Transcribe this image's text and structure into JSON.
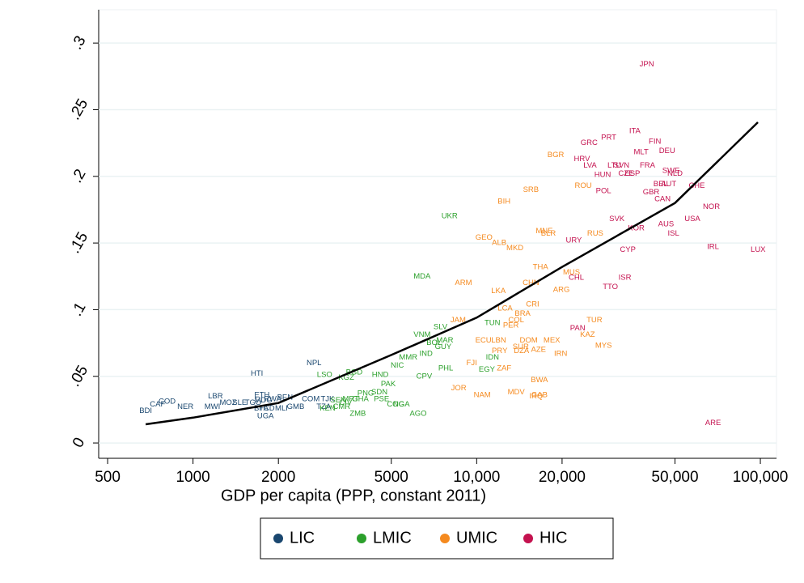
{
  "chart_data": {
    "type": "scatter",
    "x_label": "GDP per capita (PPP, constant 2011)",
    "xscale": "log",
    "xlim": [
      465,
      114000
    ],
    "ylim": [
      -0.0115,
      0.325
    ],
    "xticks": [
      500,
      1000,
      2000,
      5000,
      {
        "value": 10000,
        "label": "10,000"
      },
      {
        "value": 20000,
        "label": "20,000"
      },
      {
        "value": 50000,
        "label": "50,000"
      },
      {
        "value": 100000,
        "label": "100,000"
      }
    ],
    "yticks": [
      0,
      {
        "value": 0.05,
        "label": ".05"
      },
      {
        "value": 0.1,
        "label": ".1"
      },
      {
        "value": 0.15,
        "label": ".15"
      },
      {
        "value": 0.2,
        "label": ".2"
      },
      {
        "value": 0.25,
        "label": ".25"
      },
      {
        "value": 0.3,
        "label": ".3"
      }
    ],
    "grid": true,
    "legend": "bottom",
    "series": [
      {
        "name": "LIC",
        "color": "#1a476f",
        "labels": [
          "BDI",
          "CAF",
          "COD",
          "NER",
          "LBR",
          "MWI",
          "MOZ",
          "SLE",
          "TGO",
          "MDG",
          "RWA",
          "ETH",
          "BEN",
          "BFA",
          "TCD",
          "MLI",
          "GMB",
          "UGA",
          "HTI",
          "NPL",
          "TZA",
          "COM",
          "TJK"
        ],
        "x": [
          681,
          750,
          810,
          940,
          1200,
          1170,
          1330,
          1460,
          1630,
          1770,
          1910,
          1750,
          2110,
          1740,
          1820,
          2050,
          2300,
          1800,
          1680,
          2670,
          2890,
          2600,
          2980
        ],
        "values": [
          0.024,
          0.029,
          0.031,
          0.027,
          0.035,
          0.027,
          0.03,
          0.03,
          0.03,
          0.032,
          0.033,
          0.036,
          0.034,
          0.026,
          0.026,
          0.026,
          0.027,
          0.02,
          0.052,
          0.06,
          0.027,
          0.033,
          0.033
        ]
      },
      {
        "name": "LMIC",
        "color": "#2ca02c",
        "labels": [
          "UKR",
          "MDA",
          "SLV",
          "VNM",
          "BOL",
          "MAR",
          "IND",
          "MMR",
          "NIC",
          "HND",
          "PAK",
          "SDN",
          "PNG",
          "BGD",
          "KGZ",
          "LSO",
          "SEN",
          "MRT",
          "GHA",
          "PSE",
          "CMR",
          "KEN",
          "CIV",
          "ZMB",
          "COG",
          "NGA",
          "AGO",
          "CPV",
          "PHL",
          "IDN",
          "EGY",
          "TUN",
          "GUY"
        ],
        "x": [
          8020,
          6420,
          7450,
          6420,
          7080,
          7720,
          6630,
          5740,
          5250,
          4570,
          4880,
          4540,
          4060,
          3700,
          3470,
          2910,
          3250,
          3600,
          3890,
          4620,
          3340,
          2980,
          3450,
          3810,
          5180,
          5430,
          6220,
          6530,
          7780,
          11360,
          10860,
          11360,
          7620
        ],
        "values": [
          0.17,
          0.125,
          0.087,
          0.081,
          0.075,
          0.077,
          0.067,
          0.064,
          0.058,
          0.051,
          0.044,
          0.038,
          0.037,
          0.053,
          0.049,
          0.051,
          0.032,
          0.033,
          0.033,
          0.033,
          0.027,
          0.026,
          0.03,
          0.022,
          0.029,
          0.029,
          0.022,
          0.05,
          0.056,
          0.064,
          0.055,
          0.09,
          0.072
        ]
      },
      {
        "name": "UMIC",
        "color": "#f58a1f",
        "labels": [
          "BGR",
          "SRB",
          "BIH",
          "GEO",
          "ALB",
          "MKD",
          "MNE",
          "BLR",
          "RUS",
          "ROU",
          "THA",
          "CHN",
          "ARM",
          "LKA",
          "MUS",
          "ARG",
          "CRI",
          "LCA",
          "BRA",
          "COL",
          "PER",
          "JAM",
          "ECU",
          "LBN",
          "SUR",
          "PRY",
          "DZA",
          "DOM",
          "AZE",
          "MEX",
          "IRN",
          "TUR",
          "KAZ",
          "MYS",
          "FJI",
          "ZAF",
          "JOR",
          "NAM",
          "MDV",
          "BWA",
          "GAB",
          "IRQ"
        ],
        "x": [
          19000,
          15530,
          12490,
          10610,
          12000,
          13640,
          17310,
          17900,
          26170,
          23750,
          16780,
          15530,
          8980,
          11930,
          21590,
          19890,
          15740,
          12600,
          14520,
          13780,
          13200,
          8600,
          10560,
          11950,
          14300,
          12050,
          14390,
          15250,
          16520,
          18400,
          19780,
          26000,
          24590,
          28000,
          9600,
          12490,
          8640,
          10460,
          13780,
          16640,
          16640,
          16200
        ],
        "values": [
          0.216,
          0.19,
          0.181,
          0.154,
          0.15,
          0.146,
          0.159,
          0.157,
          0.157,
          0.193,
          0.132,
          0.12,
          0.12,
          0.114,
          0.128,
          0.115,
          0.104,
          0.101,
          0.097,
          0.092,
          0.088,
          0.092,
          0.077,
          0.077,
          0.072,
          0.069,
          0.069,
          0.077,
          0.07,
          0.077,
          0.067,
          0.092,
          0.081,
          0.073,
          0.06,
          0.056,
          0.041,
          0.036,
          0.038,
          0.047,
          0.036,
          0.035
        ]
      },
      {
        "name": "HIC",
        "color": "#c4124f",
        "labels": [
          "JPN",
          "ITA",
          "PRT",
          "FIN",
          "GRC",
          "DEU",
          "MLT",
          "FRA",
          "HRV",
          "LVA",
          "LTU",
          "SVN",
          "HUN",
          "SVK",
          "CZE",
          "ESP",
          "SWE",
          "NLD",
          "BEL",
          "AUT",
          "GBR",
          "POL",
          "CAN",
          "CHE",
          "NOR",
          "USA",
          "KOR",
          "AUS",
          "ISL",
          "URY",
          "CYP",
          "IRL",
          "LUX",
          "ISR",
          "CHL",
          "TTO",
          "PAN",
          "ARE"
        ],
        "x": [
          39780,
          36100,
          29200,
          42500,
          24900,
          46900,
          38000,
          40000,
          23500,
          25100,
          30600,
          32400,
          27800,
          31200,
          33600,
          35400,
          48400,
          50000,
          44500,
          47500,
          41200,
          28000,
          45200,
          59700,
          67200,
          57600,
          36500,
          46500,
          49400,
          22000,
          34100,
          68100,
          98200,
          33300,
          22450,
          29600,
          22700,
          68100
        ],
        "values": [
          0.284,
          0.234,
          0.229,
          0.226,
          0.225,
          0.219,
          0.218,
          0.208,
          0.213,
          0.208,
          0.208,
          0.208,
          0.201,
          0.168,
          0.202,
          0.202,
          0.204,
          0.202,
          0.194,
          0.194,
          0.188,
          0.189,
          0.183,
          0.193,
          0.177,
          0.168,
          0.161,
          0.164,
          0.157,
          0.152,
          0.145,
          0.147,
          0.145,
          0.124,
          0.124,
          0.117,
          0.086,
          0.015
        ]
      }
    ],
    "fit": {
      "color": "#000000",
      "x": [
        681,
        1000,
        2000,
        5000,
        10000,
        20000,
        50000,
        98000
      ],
      "values": [
        0.014,
        0.019,
        0.03,
        0.066,
        0.094,
        0.132,
        0.18,
        0.2406
      ]
    }
  }
}
